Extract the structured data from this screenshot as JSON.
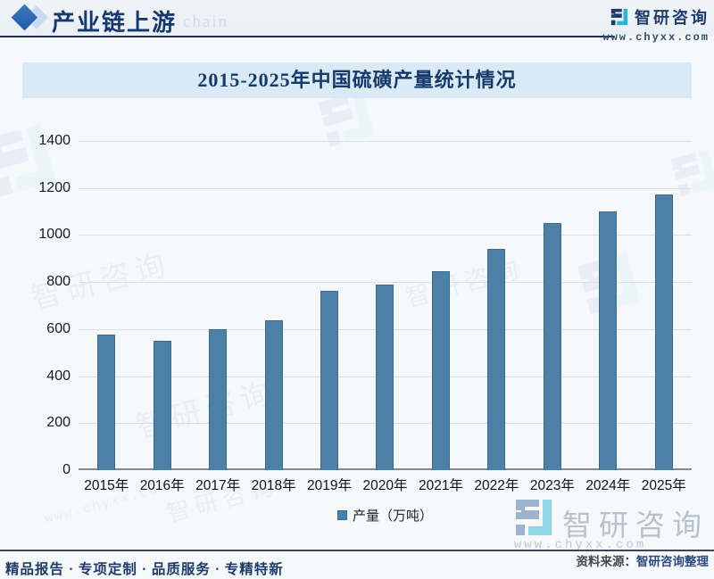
{
  "header": {
    "title": "产业链上游",
    "watermark_text": "chain",
    "logo": {
      "brand": "智研咨询",
      "url": "www.chyxx.com"
    }
  },
  "chart_data": {
    "type": "bar",
    "title": "2015-2025年中国硫磺产量统计情况",
    "categories": [
      "2015年",
      "2016年",
      "2017年",
      "2018年",
      "2019年",
      "2020年",
      "2021年",
      "2022年",
      "2023年",
      "2024年",
      "2025年"
    ],
    "series": [
      {
        "name": "产量（万吨）",
        "values": [
          575,
          550,
          598,
          637,
          762,
          789,
          846,
          942,
          1050,
          1101,
          1171
        ]
      }
    ],
    "xlabel": "",
    "ylabel": "",
    "ylim": [
      0,
      1400
    ],
    "yticks": [
      0,
      200,
      400,
      600,
      800,
      1000,
      1200,
      1400
    ],
    "grid": true,
    "legend_position": "bottom",
    "bar_color": "#4d80a6",
    "bar_border_color": "#3a6b91"
  },
  "brand_watermark": {
    "brand": "智研咨询",
    "url": "www.chyxx.com"
  },
  "source_note": {
    "label": "资料来源：",
    "value": "智研咨询整理"
  },
  "footer": {
    "slogan": "精品报告 · 专项定制 · 品质服务 · 专精特新"
  },
  "colors": {
    "navy": "#1d3b6d",
    "cyan": "#2fb4d9",
    "title_band_bg": "#d9e9f6",
    "bar": "#4d80a6",
    "gridline": "#d9dee4"
  }
}
